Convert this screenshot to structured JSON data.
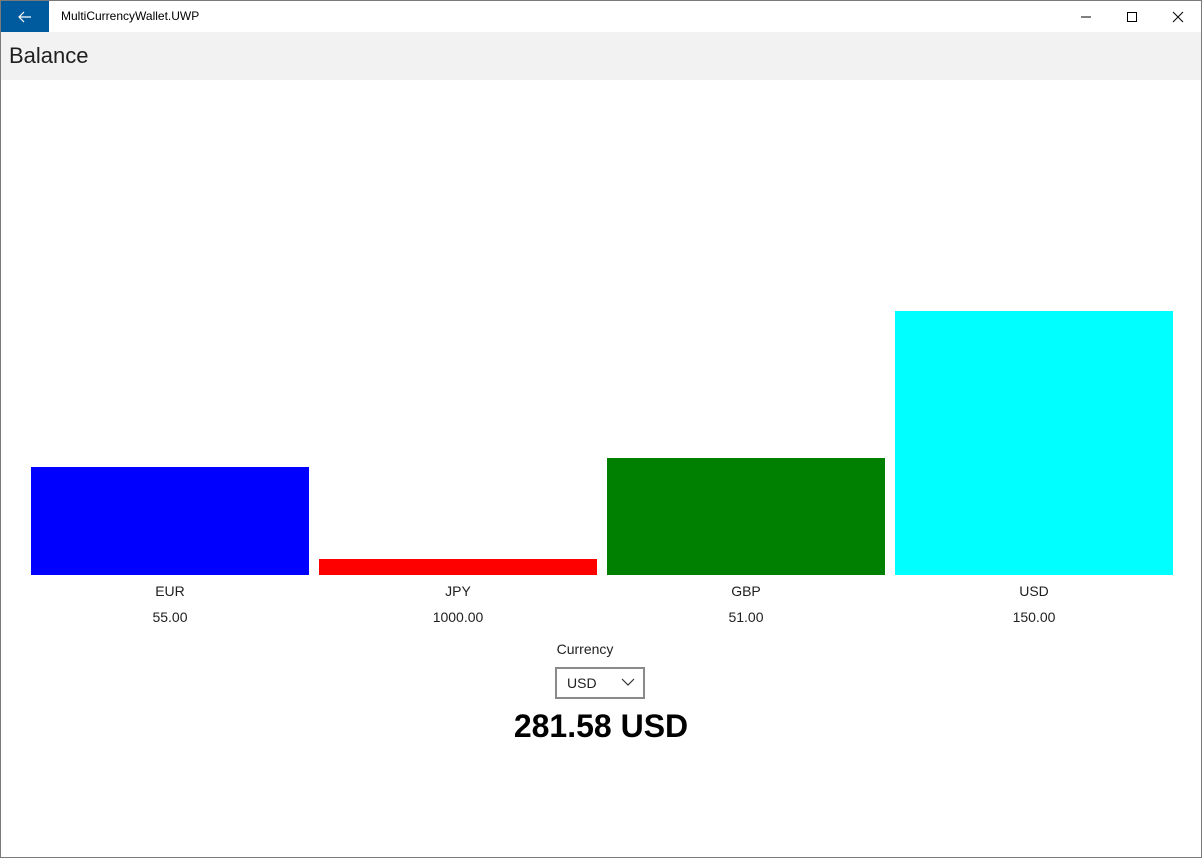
{
  "window": {
    "title": "MultiCurrencyWallet.UWP",
    "accent": "#005a9e"
  },
  "header": {
    "title": "Balance"
  },
  "chart_data": {
    "type": "bar",
    "categories": [
      "EUR",
      "JPY",
      "GBP",
      "USD"
    ],
    "values": [
      55.0,
      1000.0,
      51.0,
      150.0
    ],
    "value_labels": [
      "55.00",
      "1000.00",
      "51.00",
      "150.00"
    ],
    "colors": [
      "#0000ff",
      "#ff0000",
      "#008000",
      "#00ffff"
    ]
  },
  "currency": {
    "label": "Currency",
    "selected": "USD"
  },
  "total": {
    "amount": "281.58",
    "currency": "USD"
  }
}
